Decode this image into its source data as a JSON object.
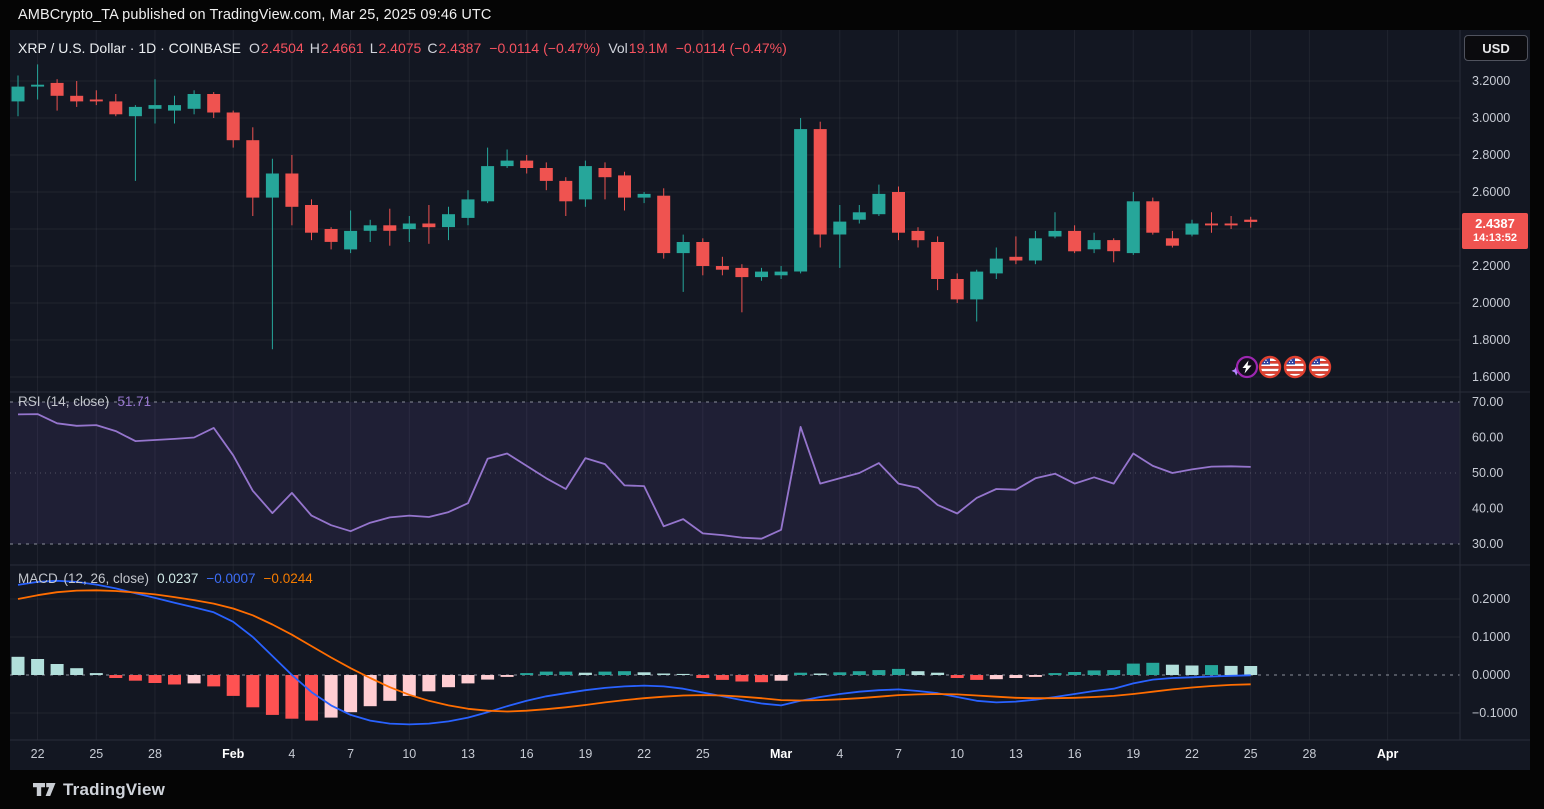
{
  "top_bar": {
    "text": "AMBCrypto_TA published on TradingView.com, Mar 25, 2025 09:46 UTC"
  },
  "header": {
    "title": "XRP / U.S. Dollar · 1D · COINBASE",
    "ohlc": [
      {
        "label": "O",
        "value": "2.4504"
      },
      {
        "label": "H",
        "value": "2.4661"
      },
      {
        "label": "L",
        "value": "2.4075"
      },
      {
        "label": "C",
        "value": "2.4387"
      }
    ],
    "change": "−0.0114 (−0.47%)",
    "vol_label": "Vol",
    "vol_value": "19.1M",
    "change2": "−0.0114 (−0.47%)"
  },
  "price_axis": {
    "currency": "USD",
    "labels": [
      "3.2000",
      "3.0000",
      "2.8000",
      "2.6000",
      "2.2000",
      "2.0000",
      "1.8000",
      "1.6000"
    ],
    "label_values": [
      3.2,
      3.0,
      2.8,
      2.6,
      2.2,
      2.0,
      1.8,
      1.6
    ],
    "last_price": "2.4387",
    "countdown": "14:13:52"
  },
  "indicators": {
    "rsi": {
      "name": "RSI",
      "params": "(14, close)",
      "value": "51.71",
      "levels": [
        "70.00",
        "60.00",
        "50.00",
        "40.00",
        "30.00"
      ],
      "level_values": [
        70,
        60,
        50,
        40,
        30
      ]
    },
    "macd": {
      "name": "MACD",
      "params": "(12, 26, close)",
      "hist_value": "0.0237",
      "macd_value": "−0.0007",
      "signal_value": "−0.0244",
      "levels": [
        "0.2000",
        "0.1000",
        "0.0000",
        "−0.1000"
      ],
      "level_values": [
        0.2,
        0.1,
        0.0,
        -0.1
      ]
    }
  },
  "time_axis": {
    "ticks": [
      {
        "i": 1,
        "label": "22"
      },
      {
        "i": 4,
        "label": "25"
      },
      {
        "i": 7,
        "label": "28"
      },
      {
        "i": 11,
        "label": "Feb",
        "major": true
      },
      {
        "i": 14,
        "label": "4"
      },
      {
        "i": 17,
        "label": "7"
      },
      {
        "i": 20,
        "label": "10"
      },
      {
        "i": 23,
        "label": "13"
      },
      {
        "i": 26,
        "label": "16"
      },
      {
        "i": 29,
        "label": "19"
      },
      {
        "i": 32,
        "label": "22"
      },
      {
        "i": 35,
        "label": "25"
      },
      {
        "i": 39,
        "label": "Mar",
        "major": true
      },
      {
        "i": 42,
        "label": "4"
      },
      {
        "i": 45,
        "label": "7"
      },
      {
        "i": 48,
        "label": "10"
      },
      {
        "i": 51,
        "label": "13"
      },
      {
        "i": 54,
        "label": "16"
      },
      {
        "i": 57,
        "label": "19"
      },
      {
        "i": 60,
        "label": "22"
      },
      {
        "i": 63,
        "label": "25"
      },
      {
        "i": 66,
        "label": "28"
      },
      {
        "i": 70,
        "label": "Apr",
        "major": true
      }
    ]
  },
  "events": {
    "icons": [
      "lightning",
      "us-flag",
      "us-flag",
      "us-flag"
    ]
  },
  "footer": {
    "brand": "TradingView"
  },
  "colors": {
    "bg": "#131722",
    "strip": "#050505",
    "up": "#26a69a",
    "down": "#ef5350",
    "grid": "rgba(255,255,255,0.06)",
    "axis_text": "#c7cbd4",
    "month_text": "#ffffff",
    "rsi_line": "#9575cd",
    "rsi_band": "rgba(126,87,194,0.12)",
    "dashed_level": "#8b8f9a",
    "macd_line": "#2962ff",
    "signal_line": "#ff6d00",
    "hist_up": "#26a69a",
    "hist_up_weak": "#b2dfdb",
    "hist_down": "#ff5252",
    "hist_down_weak": "#ffcdd2",
    "badge": "#ef5350",
    "separator": "#2a2e39"
  },
  "chart_data": {
    "type": "candlestick",
    "title": "XRP / U.S. Dollar",
    "interval": "1D",
    "exchange": "COINBASE",
    "ylabel": "Price (USD)",
    "price_range": [
      1.6,
      3.2
    ],
    "legend_position": "top-left",
    "grid": true,
    "dates": [
      "Jan 21",
      "Jan 22",
      "Jan 23",
      "Jan 24",
      "Jan 25",
      "Jan 26",
      "Jan 27",
      "Jan 28",
      "Jan 29",
      "Jan 30",
      "Jan 31",
      "Feb 1",
      "Feb 2",
      "Feb 3",
      "Feb 4",
      "Feb 5",
      "Feb 6",
      "Feb 7",
      "Feb 8",
      "Feb 9",
      "Feb 10",
      "Feb 11",
      "Feb 12",
      "Feb 13",
      "Feb 14",
      "Feb 15",
      "Feb 16",
      "Feb 17",
      "Feb 18",
      "Feb 19",
      "Feb 20",
      "Feb 21",
      "Feb 22",
      "Feb 23",
      "Feb 24",
      "Feb 25",
      "Feb 26",
      "Feb 27",
      "Feb 28",
      "Mar 1",
      "Mar 2",
      "Mar 3",
      "Mar 4",
      "Mar 5",
      "Mar 6",
      "Mar 7",
      "Mar 8",
      "Mar 9",
      "Mar 10",
      "Mar 11",
      "Mar 12",
      "Mar 13",
      "Mar 14",
      "Mar 15",
      "Mar 16",
      "Mar 17",
      "Mar 18",
      "Mar 19",
      "Mar 20",
      "Mar 21",
      "Mar 22",
      "Mar 23",
      "Mar 24",
      "Mar 25"
    ],
    "ohlc": [
      [
        3.09,
        3.23,
        3.01,
        3.17
      ],
      [
        3.17,
        3.29,
        3.1,
        3.18
      ],
      [
        3.19,
        3.21,
        3.04,
        3.12
      ],
      [
        3.12,
        3.2,
        3.06,
        3.09
      ],
      [
        3.1,
        3.15,
        3.07,
        3.09
      ],
      [
        3.09,
        3.13,
        3.01,
        3.02
      ],
      [
        3.01,
        3.07,
        2.66,
        3.06
      ],
      [
        3.05,
        3.21,
        2.97,
        3.07
      ],
      [
        3.04,
        3.12,
        2.97,
        3.07
      ],
      [
        3.05,
        3.15,
        3.02,
        3.13
      ],
      [
        3.13,
        3.14,
        3.0,
        3.03
      ],
      [
        3.03,
        3.04,
        2.84,
        2.88
      ],
      [
        2.88,
        2.95,
        2.47,
        2.57
      ],
      [
        2.57,
        2.78,
        1.75,
        2.7
      ],
      [
        2.7,
        2.8,
        2.42,
        2.52
      ],
      [
        2.53,
        2.56,
        2.34,
        2.38
      ],
      [
        2.4,
        2.41,
        2.29,
        2.33
      ],
      [
        2.29,
        2.5,
        2.27,
        2.39
      ],
      [
        2.39,
        2.45,
        2.33,
        2.42
      ],
      [
        2.42,
        2.51,
        2.31,
        2.39
      ],
      [
        2.4,
        2.47,
        2.33,
        2.43
      ],
      [
        2.43,
        2.53,
        2.32,
        2.41
      ],
      [
        2.41,
        2.52,
        2.34,
        2.48
      ],
      [
        2.46,
        2.61,
        2.42,
        2.56
      ],
      [
        2.55,
        2.84,
        2.54,
        2.74
      ],
      [
        2.74,
        2.83,
        2.73,
        2.77
      ],
      [
        2.77,
        2.8,
        2.7,
        2.73
      ],
      [
        2.73,
        2.76,
        2.61,
        2.66
      ],
      [
        2.66,
        2.68,
        2.47,
        2.55
      ],
      [
        2.56,
        2.77,
        2.52,
        2.74
      ],
      [
        2.73,
        2.76,
        2.56,
        2.68
      ],
      [
        2.69,
        2.71,
        2.5,
        2.57
      ],
      [
        2.57,
        2.6,
        2.54,
        2.59
      ],
      [
        2.58,
        2.62,
        2.24,
        2.27
      ],
      [
        2.27,
        2.37,
        2.06,
        2.33
      ],
      [
        2.33,
        2.35,
        2.15,
        2.2
      ],
      [
        2.2,
        2.25,
        2.15,
        2.18
      ],
      [
        2.19,
        2.21,
        1.95,
        2.14
      ],
      [
        2.14,
        2.19,
        2.12,
        2.17
      ],
      [
        2.15,
        2.2,
        2.13,
        2.17
      ],
      [
        2.17,
        3.0,
        2.16,
        2.94
      ],
      [
        2.94,
        2.98,
        2.3,
        2.37
      ],
      [
        2.37,
        2.53,
        2.19,
        2.44
      ],
      [
        2.45,
        2.53,
        2.43,
        2.49
      ],
      [
        2.48,
        2.64,
        2.47,
        2.59
      ],
      [
        2.6,
        2.63,
        2.34,
        2.38
      ],
      [
        2.39,
        2.41,
        2.3,
        2.34
      ],
      [
        2.33,
        2.36,
        2.07,
        2.13
      ],
      [
        2.13,
        2.16,
        2.0,
        2.02
      ],
      [
        2.02,
        2.18,
        1.9,
        2.17
      ],
      [
        2.16,
        2.3,
        2.13,
        2.24
      ],
      [
        2.25,
        2.36,
        2.21,
        2.23
      ],
      [
        2.23,
        2.39,
        2.21,
        2.35
      ],
      [
        2.36,
        2.49,
        2.35,
        2.39
      ],
      [
        2.39,
        2.42,
        2.27,
        2.28
      ],
      [
        2.29,
        2.38,
        2.27,
        2.34
      ],
      [
        2.34,
        2.35,
        2.22,
        2.28
      ],
      [
        2.27,
        2.6,
        2.26,
        2.55
      ],
      [
        2.55,
        2.57,
        2.37,
        2.38
      ],
      [
        2.35,
        2.39,
        2.3,
        2.31
      ],
      [
        2.37,
        2.45,
        2.36,
        2.43
      ],
      [
        2.43,
        2.49,
        2.38,
        2.42
      ],
      [
        2.43,
        2.47,
        2.4,
        2.42
      ],
      [
        2.4504,
        2.4661,
        2.4075,
        2.4387
      ]
    ],
    "rsi": {
      "period": 14,
      "source": "close",
      "last": 51.71,
      "range": [
        30,
        70
      ],
      "values": [
        66.5,
        66.6,
        64.0,
        63.3,
        63.5,
        61.8,
        59.0,
        59.3,
        59.6,
        60.0,
        62.7,
        55.0,
        45.0,
        38.7,
        44.4,
        38.0,
        35.3,
        33.6,
        36.0,
        37.5,
        38.0,
        37.6,
        39.0,
        41.5,
        54.0,
        55.5,
        52.0,
        48.5,
        45.5,
        54.2,
        52.5,
        46.5,
        46.3,
        35.0,
        37.0,
        33.0,
        32.5,
        31.8,
        31.5,
        34.0,
        63.0,
        47.0,
        48.5,
        50.0,
        52.8,
        47.0,
        45.8,
        41.0,
        38.6,
        43.0,
        45.5,
        45.3,
        48.5,
        49.8,
        47.0,
        48.8,
        47.0,
        55.5,
        52.0,
        50.0,
        51.0,
        51.8,
        51.9,
        51.71
      ]
    },
    "macd": {
      "fast": 12,
      "slow": 26,
      "source": "close",
      "last_histogram": 0.0237,
      "last_macd": -0.0007,
      "last_signal": -0.0244,
      "histogram": [
        0.048,
        0.042,
        0.029,
        0.018,
        0.005,
        -0.008,
        -0.015,
        -0.021,
        -0.025,
        -0.022,
        -0.03,
        -0.055,
        -0.085,
        -0.105,
        -0.115,
        -0.12,
        -0.112,
        -0.098,
        -0.082,
        -0.068,
        -0.055,
        -0.043,
        -0.032,
        -0.022,
        -0.012,
        -0.005,
        0.005,
        0.009,
        0.009,
        0.006,
        0.009,
        0.01,
        0.007,
        0.004,
        0.003,
        -0.008,
        -0.013,
        -0.017,
        -0.019,
        -0.015,
        0.006,
        0.004,
        0.007,
        0.01,
        0.013,
        0.016,
        0.01,
        0.006,
        -0.008,
        -0.013,
        -0.011,
        -0.008,
        -0.005,
        0.005,
        0.008,
        0.012,
        0.013,
        0.03,
        0.032,
        0.027,
        0.025,
        0.026,
        0.024,
        0.0237
      ],
      "macd_line": [
        0.237,
        0.245,
        0.248,
        0.245,
        0.238,
        0.228,
        0.215,
        0.203,
        0.19,
        0.178,
        0.165,
        0.14,
        0.1,
        0.05,
        0.0,
        -0.045,
        -0.08,
        -0.105,
        -0.12,
        -0.128,
        -0.13,
        -0.128,
        -0.122,
        -0.112,
        -0.098,
        -0.082,
        -0.068,
        -0.056,
        -0.048,
        -0.04,
        -0.034,
        -0.03,
        -0.028,
        -0.03,
        -0.036,
        -0.046,
        -0.056,
        -0.066,
        -0.075,
        -0.08,
        -0.068,
        -0.058,
        -0.05,
        -0.044,
        -0.04,
        -0.038,
        -0.042,
        -0.048,
        -0.058,
        -0.068,
        -0.072,
        -0.07,
        -0.065,
        -0.058,
        -0.05,
        -0.042,
        -0.036,
        -0.022,
        -0.012,
        -0.008,
        -0.006,
        -0.004,
        -0.002,
        -0.0007
      ],
      "signal_line": [
        0.2,
        0.21,
        0.218,
        0.222,
        0.223,
        0.221,
        0.217,
        0.212,
        0.205,
        0.197,
        0.188,
        0.175,
        0.157,
        0.133,
        0.106,
        0.076,
        0.046,
        0.018,
        -0.008,
        -0.032,
        -0.052,
        -0.068,
        -0.08,
        -0.089,
        -0.094,
        -0.096,
        -0.094,
        -0.09,
        -0.085,
        -0.079,
        -0.072,
        -0.066,
        -0.061,
        -0.057,
        -0.054,
        -0.053,
        -0.054,
        -0.057,
        -0.061,
        -0.066,
        -0.067,
        -0.066,
        -0.064,
        -0.061,
        -0.057,
        -0.053,
        -0.051,
        -0.05,
        -0.051,
        -0.054,
        -0.057,
        -0.06,
        -0.061,
        -0.061,
        -0.06,
        -0.058,
        -0.055,
        -0.05,
        -0.044,
        -0.038,
        -0.033,
        -0.029,
        -0.026,
        -0.0244
      ]
    }
  }
}
